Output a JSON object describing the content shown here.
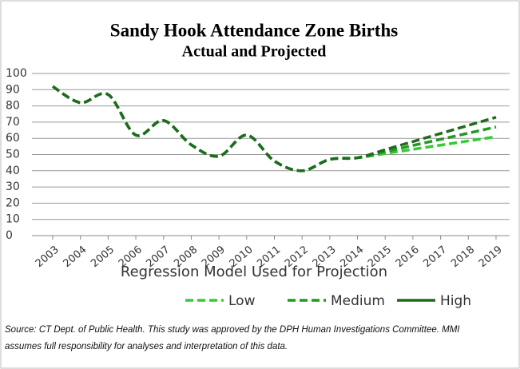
{
  "chart_data": {
    "type": "line",
    "title": "Sandy Hook Attendance Zone Births",
    "subtitle": "Actual and Projected",
    "x_label": "Regression Model Used for Projection",
    "source": "Source: CT Dept. of Public Health. This study was approved by the DPH Human Investigations Committee. MMI assumes full responsibility for analyses and interpretation of this data.",
    "categories": [
      "2003",
      "2004",
      "2005",
      "2006",
      "2007",
      "2008",
      "2009",
      "2010",
      "2011",
      "2012",
      "2013",
      "2014",
      "2015",
      "2016",
      "2017",
      "2018",
      "2019"
    ],
    "series": [
      {
        "name": "Low",
        "color": "#33cc33",
        "values": [
          92,
          82,
          87,
          62,
          71,
          56,
          49,
          62,
          46,
          40,
          47,
          48,
          50.6,
          53.2,
          55.8,
          58.4,
          61
        ]
      },
      {
        "name": "Medium",
        "color": "#229922",
        "values": [
          92,
          82,
          87,
          62,
          71,
          56,
          49,
          62,
          46,
          40,
          47,
          48,
          51.8,
          55.6,
          59.4,
          63.2,
          67
        ]
      },
      {
        "name": "High",
        "color": "#1e6b1e",
        "values": [
          92,
          82,
          87,
          62,
          71,
          56,
          49,
          62,
          46,
          40,
          47,
          48,
          53,
          58,
          63,
          68,
          73
        ]
      }
    ],
    "ylim": [
      0,
      100
    ],
    "yticks": [
      0,
      10,
      20,
      30,
      40,
      50,
      60,
      70,
      80,
      90,
      100
    ],
    "grid": true
  }
}
